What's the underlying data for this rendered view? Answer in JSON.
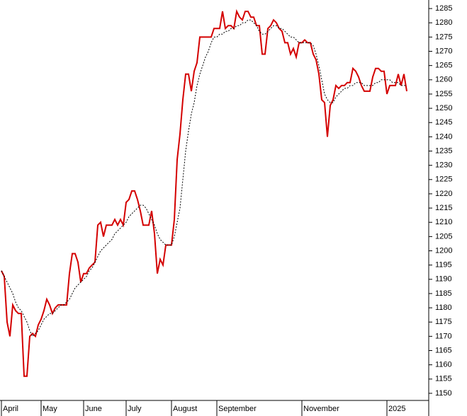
{
  "chart_data": {
    "type": "line",
    "x": [
      0,
      1,
      2,
      3,
      4,
      5,
      6,
      7,
      8,
      9,
      10,
      11,
      12,
      13,
      14,
      15,
      16,
      17,
      18,
      19,
      20,
      21,
      22,
      23,
      24,
      25,
      26,
      27,
      28,
      29,
      30,
      31,
      32,
      33,
      34,
      35,
      36,
      37,
      38,
      39,
      40,
      41,
      42,
      43,
      44,
      45,
      46,
      47,
      48,
      49,
      50,
      51,
      52,
      53,
      54,
      55,
      56,
      57,
      58,
      59,
      60,
      61,
      62,
      63,
      64,
      65,
      66,
      67,
      68,
      69,
      70,
      71,
      72,
      73,
      74,
      75,
      76,
      77,
      78,
      79,
      80,
      81,
      82,
      83,
      84,
      85,
      86,
      87,
      88,
      89,
      90,
      91,
      92,
      93,
      94,
      95,
      96,
      97,
      98,
      99,
      100,
      101,
      102,
      103,
      104,
      105,
      106,
      107,
      108,
      109,
      110,
      111,
      112,
      113,
      114,
      115,
      116,
      117,
      118,
      119,
      120,
      121,
      122,
      123,
      124,
      125,
      126,
      127,
      128,
      129,
      130,
      131,
      132,
      133,
      134,
      135,
      136,
      137,
      138,
      139,
      140,
      141,
      142,
      143
    ],
    "series": [
      {
        "color": "#d40000",
        "style": "solid",
        "values": [
          1193,
          1191,
          1175,
          1170,
          1181,
          1179,
          1178,
          1178,
          1156,
          1156,
          1170,
          1171,
          1170,
          1174,
          1176,
          1179,
          1183,
          1181,
          1178,
          1180,
          1181,
          1181,
          1181,
          1181,
          1192,
          1199,
          1199,
          1196,
          1189,
          1192,
          1192,
          1194,
          1195,
          1196,
          1209,
          1210,
          1205,
          1209,
          1209,
          1209,
          1211,
          1209,
          1211,
          1209,
          1217,
          1218,
          1221,
          1221,
          1218,
          1214,
          1209,
          1209,
          1209,
          1214,
          1206,
          1192,
          1197,
          1195,
          1202,
          1202,
          1202,
          1211,
          1232,
          1241,
          1253,
          1262,
          1262,
          1256,
          1263,
          1266,
          1275,
          1275,
          1275,
          1275,
          1275,
          1278,
          1278,
          1278,
          1284,
          1278,
          1279,
          1279,
          1278,
          1284,
          1282,
          1281,
          1284,
          1284,
          1282,
          1282,
          1279,
          1279,
          1269,
          1269,
          1278,
          1279,
          1281,
          1280,
          1278,
          1277,
          1273,
          1273,
          1269,
          1271,
          1268,
          1273,
          1273,
          1274,
          1273,
          1273,
          1269,
          1267,
          1262,
          1253,
          1252,
          1240,
          1251,
          1253,
          1258,
          1257,
          1258,
          1258,
          1259,
          1259,
          1264,
          1263,
          1261,
          1258,
          1256,
          1256,
          1256,
          1261,
          1264,
          1264,
          1263,
          1263,
          1255,
          1258,
          1258,
          1258,
          1262,
          1258,
          1262,
          1256
        ]
      },
      {
        "color": "#000000",
        "style": "dashed",
        "values": [
          1193,
          1191,
          1189,
          1187,
          1185,
          1182,
          1180,
          1179,
          1177,
          1175,
          1172,
          1170,
          1171,
          1172,
          1174,
          1176,
          1177,
          1178,
          1178,
          1179,
          1180,
          1181,
          1181,
          1182,
          1183,
          1185,
          1187,
          1188,
          1189,
          1190,
          1191,
          1193,
          1194,
          1196,
          1198,
          1200,
          1201,
          1202,
          1203,
          1204,
          1206,
          1207,
          1208,
          1209,
          1210,
          1212,
          1213,
          1214,
          1215,
          1216,
          1216,
          1215,
          1213,
          1211,
          1209,
          1206,
          1204,
          1203,
          1202,
          1202,
          1202,
          1205,
          1210,
          1215,
          1225,
          1235,
          1242,
          1248,
          1252,
          1258,
          1262,
          1265,
          1268,
          1270,
          1273,
          1275,
          1275,
          1276,
          1276,
          1277,
          1277,
          1278,
          1278,
          1279,
          1279,
          1280,
          1280,
          1281,
          1281,
          1280,
          1279,
          1277,
          1276,
          1276,
          1277,
          1278,
          1279,
          1279,
          1278,
          1278,
          1277,
          1276,
          1275,
          1275,
          1274,
          1273,
          1273,
          1273,
          1273,
          1273,
          1272,
          1269,
          1265,
          1260,
          1255,
          1253,
          1252,
          1252,
          1254,
          1255,
          1256,
          1257,
          1257,
          1258,
          1258,
          1259,
          1259,
          1259,
          1258,
          1258,
          1258,
          1258,
          1259,
          1259,
          1260,
          1260,
          1260,
          1260,
          1259,
          1259,
          1259,
          1258,
          1258,
          1258
        ]
      }
    ],
    "xlim": [
      -0.5,
      150.75
    ],
    "xticks": [
      {
        "value": 0,
        "label": "April"
      },
      {
        "value": 14,
        "label": "May"
      },
      {
        "value": 29,
        "label": "June"
      },
      {
        "value": 44,
        "label": "July"
      },
      {
        "value": 60,
        "label": "August"
      },
      {
        "value": 76,
        "label": "September"
      },
      {
        "value": 106,
        "label": "November"
      },
      {
        "value": 136,
        "label": "2025"
      }
    ],
    "ylim": [
      1147.5,
      1288
    ],
    "yticks": [
      1150,
      1155,
      1160,
      1165,
      1170,
      1175,
      1180,
      1185,
      1190,
      1195,
      1200,
      1205,
      1210,
      1215,
      1220,
      1225,
      1230,
      1235,
      1240,
      1245,
      1250,
      1255,
      1260,
      1265,
      1270,
      1275,
      1280,
      1285
    ]
  }
}
